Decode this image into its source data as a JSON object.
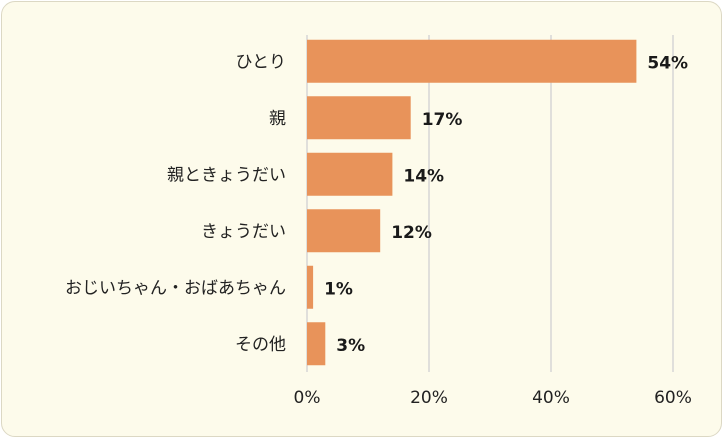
{
  "chart_data": {
    "type": "bar",
    "orientation": "horizontal",
    "categories": [
      "ひとり",
      "親",
      "親ときょうだい",
      "きょうだい",
      "おじいちゃん・おばあちゃん",
      "その他"
    ],
    "values": [
      54,
      17,
      14,
      12,
      1,
      3
    ],
    "value_labels": [
      "54%",
      "17%",
      "14%",
      "12%",
      "1%",
      "3%"
    ],
    "xlim": [
      0,
      60
    ],
    "x_ticks": [
      0,
      20,
      40,
      60
    ],
    "x_tick_labels": [
      "0%",
      "20%",
      "40%",
      "60%"
    ],
    "grid": "vertical",
    "legend": "none",
    "colors": {
      "bar": "#e8935a",
      "grid": "#d6d6d6",
      "background": "#fdfbeb"
    }
  }
}
